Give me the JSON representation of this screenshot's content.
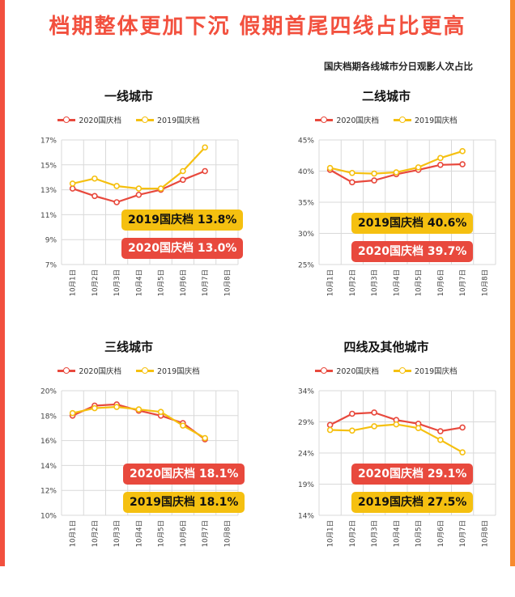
{
  "headline": "档期整体更加下沉 假期首尾四线占比更高",
  "subtitle": "国庆档期各线城市分日观影人次占比",
  "colors": {
    "y2020": "#e8493d",
    "y2019": "#f5c010",
    "accent": "#f2503e"
  },
  "chart_data": [
    {
      "type": "line",
      "title": "一线城市",
      "categories": [
        "10月1日",
        "10月2日",
        "10月3日",
        "10月4日",
        "10月5日",
        "10月6日",
        "10月7日",
        "10月8日"
      ],
      "series": [
        {
          "name": "2020国庆档",
          "values": [
            13.1,
            12.5,
            12.0,
            12.6,
            13.0,
            13.8,
            14.5,
            null
          ]
        },
        {
          "name": "2019国庆档",
          "values": [
            13.5,
            13.9,
            13.3,
            13.1,
            13.1,
            14.5,
            16.4,
            null
          ]
        }
      ],
      "yticks": [
        "17%",
        "15%",
        "13%",
        "11%",
        "9%",
        "7%"
      ],
      "ylim": [
        7,
        17
      ],
      "grid": true,
      "annotations": [
        "2019国庆档 13.8%",
        "2020国庆档 13.0%"
      ]
    },
    {
      "type": "line",
      "title": "二线城市",
      "categories": [
        "10月1日",
        "10月2日",
        "10月3日",
        "10月4日",
        "10月5日",
        "10月6日",
        "10月7日",
        "10月8日"
      ],
      "series": [
        {
          "name": "2020国庆档",
          "values": [
            40.2,
            38.2,
            38.5,
            39.5,
            40.2,
            41.0,
            41.1,
            null
          ]
        },
        {
          "name": "2019国庆档",
          "values": [
            40.5,
            39.7,
            39.6,
            39.8,
            40.6,
            42.1,
            43.2,
            null
          ]
        }
      ],
      "yticks": [
        "45%",
        "40%",
        "35%",
        "30%",
        "25%"
      ],
      "ylim": [
        25,
        45
      ],
      "grid": true,
      "annotations": [
        "2019国庆档 40.6%",
        "2020国庆档 39.7%"
      ]
    },
    {
      "type": "line",
      "title": "三线城市",
      "categories": [
        "10月1日",
        "10月2日",
        "10月3日",
        "10月4日",
        "10月5日",
        "10月6日",
        "10月7日",
        "10月8日"
      ],
      "series": [
        {
          "name": "2020国庆档",
          "values": [
            18.0,
            18.8,
            18.9,
            18.4,
            18.0,
            17.4,
            16.1,
            null
          ]
        },
        {
          "name": "2019国庆档",
          "values": [
            18.2,
            18.6,
            18.7,
            18.5,
            18.3,
            17.2,
            16.2,
            null
          ]
        }
      ],
      "yticks": [
        "20%",
        "18%",
        "16%",
        "14%",
        "12%",
        "10%"
      ],
      "ylim": [
        10,
        20
      ],
      "grid": true,
      "annotations": [
        "2020国庆档 18.1%",
        "2019国庆档 18.1%"
      ]
    },
    {
      "type": "line",
      "title": "四线及其他城市",
      "categories": [
        "10月1日",
        "10月2日",
        "10月3日",
        "10月4日",
        "10月5日",
        "10月6日",
        "10月7日",
        "10月8日"
      ],
      "series": [
        {
          "name": "2020国庆档",
          "values": [
            28.5,
            30.3,
            30.5,
            29.3,
            28.7,
            27.5,
            28.1,
            null
          ]
        },
        {
          "name": "2019国庆档",
          "values": [
            27.7,
            27.6,
            28.3,
            28.6,
            28.0,
            26.1,
            24.1,
            null
          ]
        }
      ],
      "yticks": [
        "34%",
        "29%",
        "24%",
        "19%",
        "14%"
      ],
      "ylim": [
        14,
        34
      ],
      "grid": true,
      "annotations": [
        "2020国庆档 29.1%",
        "2019国庆档 27.5%"
      ]
    }
  ]
}
